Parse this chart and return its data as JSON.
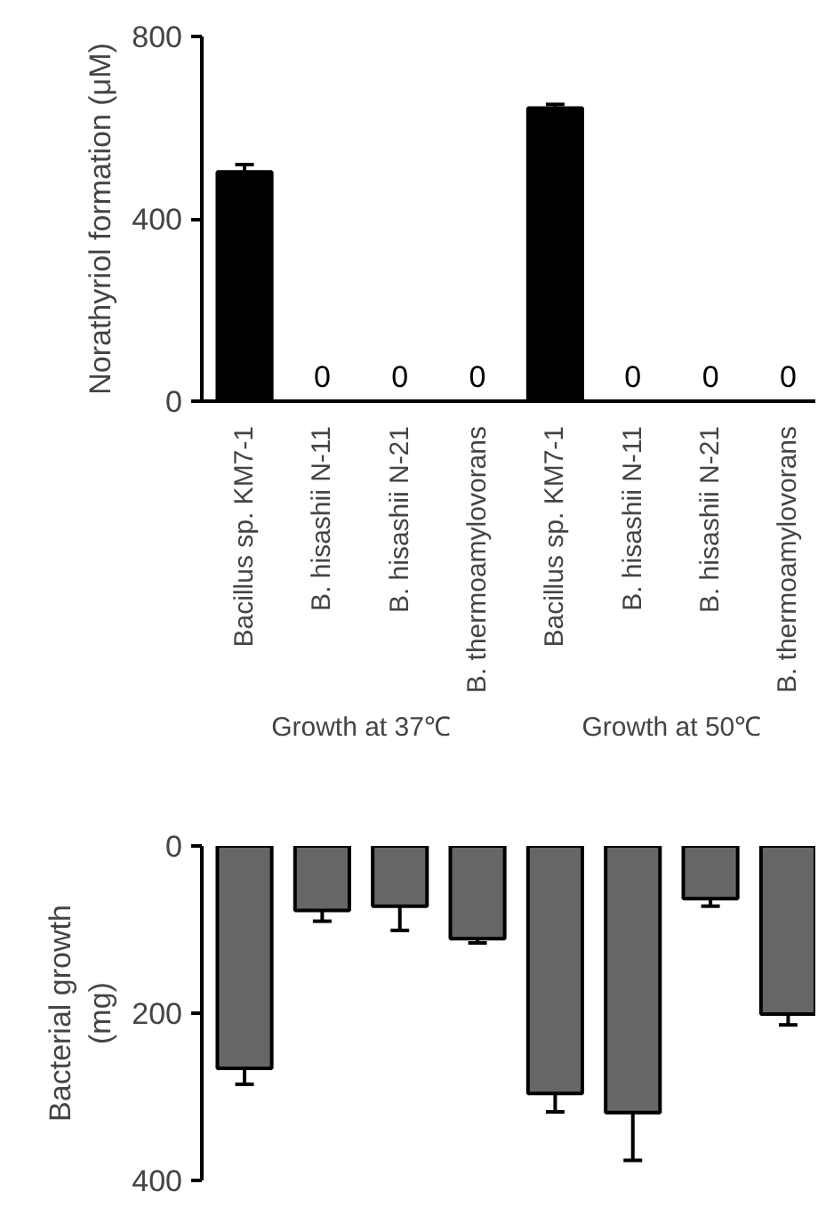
{
  "chart_data": [
    {
      "type": "bar",
      "ylabel": "Norathyriol formation (μM)",
      "categories": [
        "Bacillus sp. KM7-1",
        "B. hisashii N-11",
        "B. hisashii N-21",
        "B. thermoamylovorans",
        "Bacillus sp. KM7-1",
        "B. hisashii N-11",
        "B. hisashii N-21",
        "B. thermoamylovorans"
      ],
      "values": [
        503,
        0,
        0,
        0,
        643,
        0,
        0,
        0
      ],
      "errors": [
        16,
        null,
        null,
        null,
        8,
        null,
        null,
        null
      ],
      "value_labels": [
        null,
        "0",
        "0",
        "0",
        null,
        "0",
        "0",
        "0"
      ],
      "color": "#000000",
      "ylim": [
        0,
        800
      ],
      "yticks": [
        0,
        400,
        800
      ],
      "grid": false,
      "annotations": [
        "Growth at 37℃",
        "Growth at 50℃"
      ]
    },
    {
      "type": "bar",
      "ylabel": "Bacterial growth\n(mg)",
      "categories": [
        null,
        null,
        null,
        null,
        null,
        null,
        null,
        null
      ],
      "values": [
        266,
        77,
        72,
        111,
        296,
        319,
        63,
        201
      ],
      "errors": [
        19,
        13,
        29,
        5,
        22,
        57,
        9,
        13
      ],
      "color": "#666666",
      "ylim": [
        400,
        0
      ],
      "yticks": [
        0,
        200,
        400
      ],
      "grid": false,
      "tick_labels": "y"
    }
  ]
}
